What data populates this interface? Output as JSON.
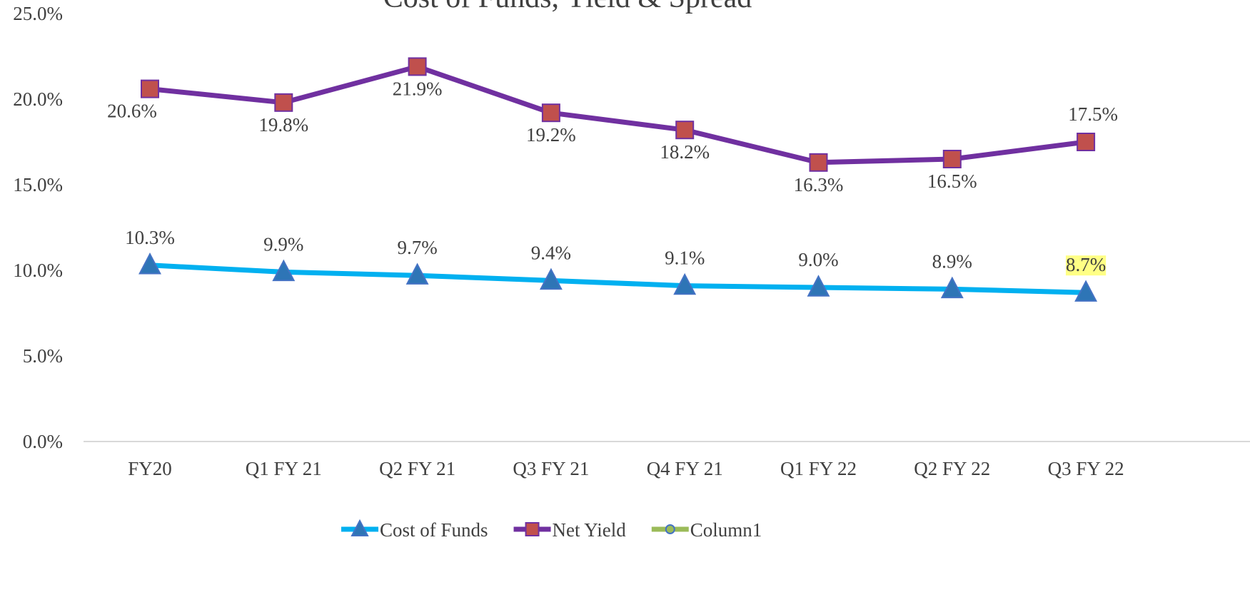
{
  "chart_data": {
    "type": "line",
    "title": "Cost of Funds, Yield & Spread",
    "categories": [
      "FY20",
      "Q1 FY 21",
      "Q2 FY 21",
      "Q3 FY 21",
      "Q4 FY 21",
      "Q1 FY 22",
      "Q2 FY 22",
      "Q3 FY 22"
    ],
    "series": [
      {
        "name": "Cost of Funds",
        "color": "#00b0f0",
        "marker": "triangle",
        "values": [
          10.3,
          9.9,
          9.7,
          9.4,
          9.1,
          9.0,
          8.9,
          8.7
        ],
        "value_labels": [
          "10.3%",
          "9.9%",
          "9.7%",
          "9.4%",
          "9.1%",
          "9.0%",
          "8.9%",
          "8.7%"
        ]
      },
      {
        "name": "Net Yield",
        "color": "#7030a0",
        "marker": "square",
        "values": [
          20.6,
          19.8,
          21.9,
          19.2,
          18.2,
          16.3,
          16.5,
          17.5
        ],
        "value_labels": [
          "20.6%",
          "19.8%",
          "21.9%",
          "19.2%",
          "18.2%",
          "16.3%",
          "16.5%",
          "17.5%"
        ]
      },
      {
        "name": "Column1",
        "color": "#9bbb59",
        "marker": "circle",
        "values": [
          null,
          null,
          null,
          null,
          null,
          null,
          null,
          null
        ]
      }
    ],
    "ylim": [
      0,
      25
    ],
    "yticks": [
      {
        "value": 0,
        "label": "0.0%"
      },
      {
        "value": 5,
        "label": "5.0%"
      },
      {
        "value": 10,
        "label": "10.0%"
      },
      {
        "value": 15,
        "label": "15.0%"
      },
      {
        "value": 20,
        "label": "20.0%"
      },
      {
        "value": 25,
        "label": "25.0%"
      }
    ],
    "legend": "bottom"
  }
}
